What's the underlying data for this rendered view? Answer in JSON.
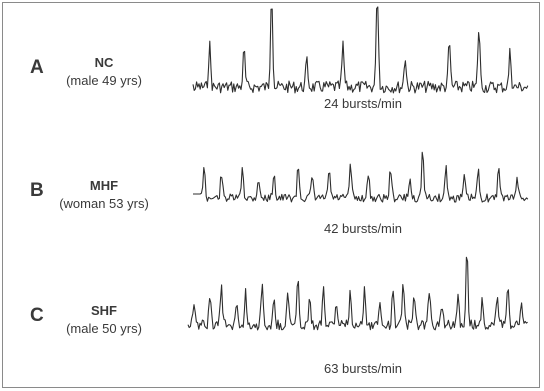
{
  "panels": [
    {
      "letter": "A",
      "group": "NC",
      "subject": "(male 49 yrs)",
      "rate": "24 bursts/min",
      "bursts_per_min": 24
    },
    {
      "letter": "B",
      "group": "MHF",
      "subject": "(woman 53 yrs)",
      "rate": "42 bursts/min",
      "bursts_per_min": 42
    },
    {
      "letter": "C",
      "group": "SHF",
      "subject": "(male 50 yrs)",
      "rate": "63 bursts/min",
      "bursts_per_min": 63
    }
  ],
  "colors": {
    "trace": "#2e2e2e",
    "text": "#3a3a3a",
    "border": "#8a8a8a"
  }
}
